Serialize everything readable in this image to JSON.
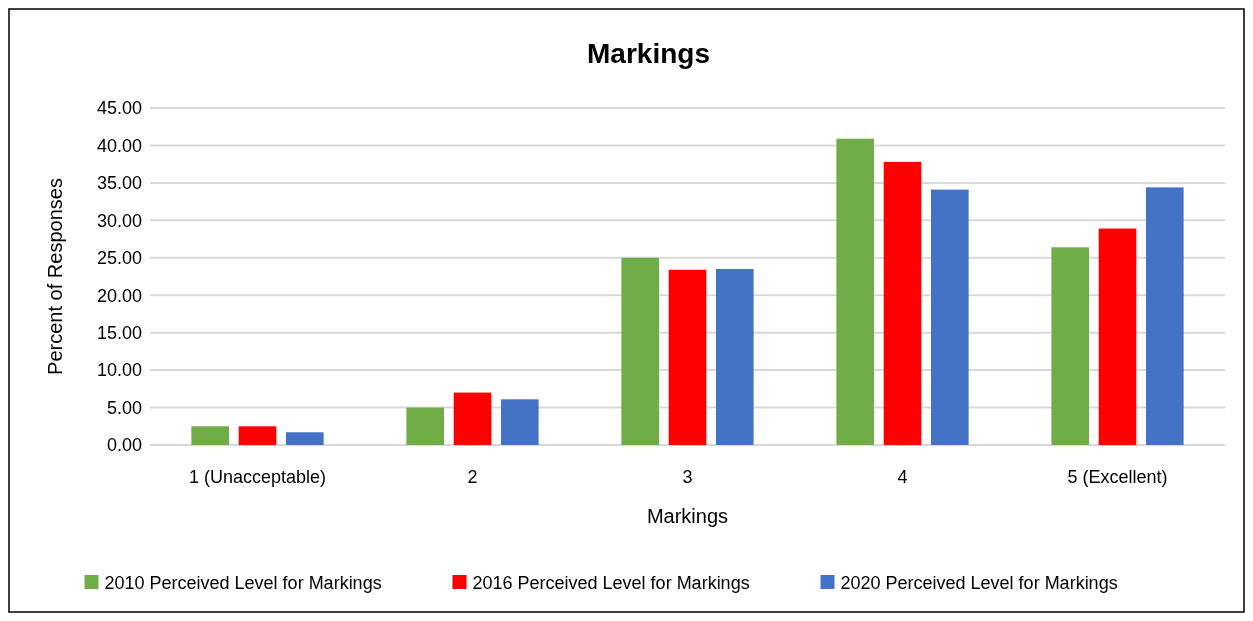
{
  "chart_data": {
    "type": "bar",
    "title": "Markings",
    "xlabel": "Markings",
    "ylabel": "Percent of Responses",
    "categories": [
      "1 (Unacceptable)",
      "2",
      "3",
      "4",
      "5 (Excellent)"
    ],
    "series": [
      {
        "name": "2010 Perceived Level for Markings",
        "color": "#70ad47",
        "values": [
          2.5,
          5.0,
          25.0,
          40.9,
          26.4
        ]
      },
      {
        "name": "2016 Perceived Level for Markings",
        "color": "#ff0000",
        "values": [
          2.5,
          7.0,
          23.4,
          37.8,
          28.9
        ]
      },
      {
        "name": "2020 Perceived Level for Markings",
        "color": "#4472c4",
        "values": [
          1.7,
          6.1,
          23.5,
          34.1,
          34.4
        ]
      }
    ],
    "ylim": [
      0,
      45
    ],
    "yticks": [
      {
        "value": 0,
        "label": "0.00"
      },
      {
        "value": 5,
        "label": "5.00"
      },
      {
        "value": 10,
        "label": "10.00"
      },
      {
        "value": 15,
        "label": "15.00"
      },
      {
        "value": 20,
        "label": "20.00"
      },
      {
        "value": 25,
        "label": "25.00"
      },
      {
        "value": 30,
        "label": "30.00"
      },
      {
        "value": 35,
        "label": "35.00"
      },
      {
        "value": 40,
        "label": "40.00"
      },
      {
        "value": 45,
        "label": "45.00"
      }
    ],
    "grid": "y",
    "legend": "bottom"
  }
}
